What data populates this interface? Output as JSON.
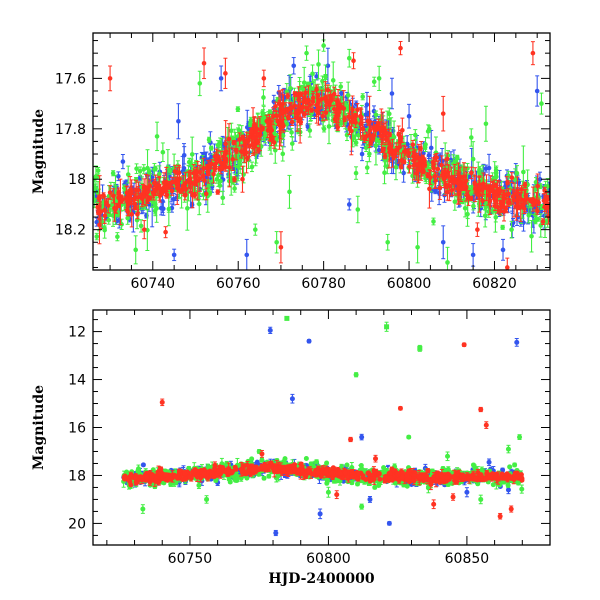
{
  "chart_data": [
    {
      "type": "scatter",
      "panel": "top",
      "ylabel": "Magnitude",
      "xlabel": "",
      "xlim": [
        60726,
        60833
      ],
      "ylim": [
        18.36,
        17.42
      ],
      "y_inverted": true,
      "xticks_labeled": [
        60740,
        60760,
        60780,
        60800,
        60820
      ],
      "yticks_labeled": [
        17.6,
        17.8,
        18,
        18.2
      ],
      "xtick_labels": [
        "60740",
        "60760",
        "60780",
        "60800",
        "60820"
      ],
      "ytick_labels": [
        "17.6",
        "17.8",
        "18",
        "18.2"
      ],
      "grid": false,
      "errorbars": true,
      "series": [
        {
          "color": "#3355ee",
          "trend": [
            [
              60726,
              18.13
            ],
            [
              60735,
              18.07
            ],
            [
              60745,
              18.02
            ],
            [
              60752,
              17.98
            ],
            [
              60758,
              17.91
            ],
            [
              60765,
              17.82
            ],
            [
              60772,
              17.73
            ],
            [
              60778,
              17.68
            ],
            [
              60784,
              17.72
            ],
            [
              60790,
              17.8
            ],
            [
              60798,
              17.89
            ],
            [
              60805,
              17.95
            ],
            [
              60812,
              18.02
            ],
            [
              60820,
              18.06
            ],
            [
              60826,
              18.08
            ],
            [
              60833,
              18.09
            ]
          ],
          "scatter_sd": 0.045,
          "outliers": [
            [
              60733,
              17.93
            ],
            [
              60746,
              17.77
            ],
            [
              60756,
              17.6
            ],
            [
              60773,
              17.55
            ],
            [
              60777,
              17.62
            ],
            [
              60781,
              17.55
            ],
            [
              60789,
              17.9
            ],
            [
              60796,
              17.66
            ],
            [
              60808,
              18.25
            ],
            [
              60815,
              18.3
            ],
            [
              60822,
              18.28
            ],
            [
              60830,
              17.65
            ],
            [
              60762,
              18.3
            ],
            [
              60786,
              18.1
            ],
            [
              60800,
              17.75
            ],
            [
              60745,
              18.3
            ]
          ]
        },
        {
          "color": "#44ee44",
          "trend": [
            [
              60726,
              18.13
            ],
            [
              60735,
              18.07
            ],
            [
              60745,
              18.02
            ],
            [
              60752,
              17.98
            ],
            [
              60758,
              17.91
            ],
            [
              60765,
              17.82
            ],
            [
              60772,
              17.73
            ],
            [
              60778,
              17.68
            ],
            [
              60784,
              17.72
            ],
            [
              60790,
              17.8
            ],
            [
              60798,
              17.89
            ],
            [
              60805,
              17.95
            ],
            [
              60812,
              18.02
            ],
            [
              60820,
              18.06
            ],
            [
              60826,
              18.08
            ],
            [
              60833,
              18.09
            ]
          ],
          "scatter_sd": 0.06,
          "outliers": [
            [
              60736,
              18.28
            ],
            [
              60741,
              17.83
            ],
            [
              60751,
              17.62
            ],
            [
              60758,
              17.9
            ],
            [
              60764,
              18.2
            ],
            [
              60769,
              18.25
            ],
            [
              60772,
              18.05
            ],
            [
              60776,
              17.5
            ],
            [
              60780,
              17.47
            ],
            [
              60786,
              17.52
            ],
            [
              60788,
              18.12
            ],
            [
              60795,
              18.25
            ],
            [
              60802,
              18.27
            ],
            [
              60809,
              18.33
            ],
            [
              60815,
              17.92
            ],
            [
              60818,
              17.78
            ],
            [
              60824,
              18.2
            ],
            [
              60831,
              17.7
            ],
            [
              60760,
              17.95
            ],
            [
              60793,
              17.6
            ]
          ]
        },
        {
          "color": "#ff3322",
          "trend": [
            [
              60726,
              18.13
            ],
            [
              60735,
              18.07
            ],
            [
              60745,
              18.02
            ],
            [
              60752,
              17.98
            ],
            [
              60758,
              17.91
            ],
            [
              60765,
              17.82
            ],
            [
              60772,
              17.73
            ],
            [
              60778,
              17.68
            ],
            [
              60784,
              17.72
            ],
            [
              60790,
              17.8
            ],
            [
              60798,
              17.89
            ],
            [
              60805,
              17.95
            ],
            [
              60812,
              18.02
            ],
            [
              60820,
              18.06
            ],
            [
              60826,
              18.08
            ],
            [
              60833,
              18.09
            ]
          ],
          "scatter_sd": 0.03,
          "outliers": [
            [
              60730,
              17.6
            ],
            [
              60743,
              18.21
            ],
            [
              60752,
              17.54
            ],
            [
              60757,
              17.58
            ],
            [
              60761,
              18.0
            ],
            [
              60770,
              18.27
            ],
            [
              60787,
              17.53
            ],
            [
              60798,
              17.48
            ],
            [
              60808,
              17.74
            ],
            [
              60816,
              18.2
            ],
            [
              60823,
              18.35
            ],
            [
              60829,
              17.5
            ],
            [
              60738,
              18.2
            ],
            [
              60766,
              17.6
            ]
          ]
        }
      ]
    },
    {
      "type": "scatter",
      "panel": "bottom",
      "ylabel": "Magnitude",
      "xlabel": "HJD-2400000",
      "xlim": [
        60715,
        60880
      ],
      "ylim": [
        20.9,
        11.1
      ],
      "y_inverted": true,
      "xticks_labeled": [
        60750,
        60800,
        60850
      ],
      "yticks_labeled": [
        12,
        14,
        16,
        18,
        20
      ],
      "xtick_labels": [
        "60750",
        "60800",
        "60850"
      ],
      "ytick_labels": [
        "12",
        "14",
        "16",
        "18",
        "20"
      ],
      "grid": false,
      "errorbars": true,
      "series": [
        {
          "color": "#3355ee",
          "trend": [
            [
              60726,
              18.13
            ],
            [
              60745,
              18.02
            ],
            [
              60765,
              17.82
            ],
            [
              60778,
              17.68
            ],
            [
              60790,
              17.8
            ],
            [
              60805,
              17.95
            ],
            [
              60820,
              18.06
            ],
            [
              60840,
              18.08
            ],
            [
              60860,
              18.07
            ],
            [
              60870,
              18.07
            ]
          ],
          "scatter_sd": 0.12,
          "outliers": [
            [
              60779,
              11.95
            ],
            [
              60793,
              12.4
            ],
            [
              60787,
              14.8
            ],
            [
              60812,
              16.4
            ],
            [
              60835,
              17.7
            ],
            [
              60850,
              18.7
            ],
            [
              60858,
              17.45
            ],
            [
              60868,
              12.45
            ],
            [
              60781,
              20.4
            ],
            [
              60797,
              19.6
            ],
            [
              60822,
              20.0
            ],
            [
              60815,
              19.0
            ],
            [
              60865,
              18.6
            ],
            [
              60760,
              18.3
            ]
          ]
        },
        {
          "color": "#44ee44",
          "trend": [
            [
              60726,
              18.13
            ],
            [
              60745,
              18.02
            ],
            [
              60765,
              17.82
            ],
            [
              60778,
              17.68
            ],
            [
              60790,
              17.8
            ],
            [
              60805,
              17.95
            ],
            [
              60820,
              18.06
            ],
            [
              60840,
              18.08
            ],
            [
              60860,
              18.07
            ],
            [
              60870,
              18.07
            ]
          ],
          "scatter_sd": 0.18,
          "outliers": [
            [
              60733,
              19.4
            ],
            [
              60785,
              11.45
            ],
            [
              60810,
              13.8
            ],
            [
              60821,
              11.8
            ],
            [
              60833,
              12.7
            ],
            [
              60829,
              16.4
            ],
            [
              60843,
              17.2
            ],
            [
              60865,
              16.9
            ],
            [
              60869,
              16.4
            ],
            [
              60812,
              19.3
            ],
            [
              60756,
              19.0
            ],
            [
              60775,
              17.0
            ],
            [
              60800,
              18.7
            ],
            [
              60855,
              19.0
            ]
          ]
        },
        {
          "color": "#ff3322",
          "trend": [
            [
              60726,
              18.13
            ],
            [
              60745,
              18.02
            ],
            [
              60765,
              17.82
            ],
            [
              60778,
              17.68
            ],
            [
              60790,
              17.8
            ],
            [
              60805,
              17.95
            ],
            [
              60820,
              18.06
            ],
            [
              60840,
              18.08
            ],
            [
              60860,
              18.07
            ],
            [
              60870,
              18.07
            ]
          ],
          "scatter_sd": 0.1,
          "outliers": [
            [
              60740,
              14.95
            ],
            [
              60808,
              16.5
            ],
            [
              60826,
              15.2
            ],
            [
              60849,
              12.55
            ],
            [
              60855,
              15.25
            ],
            [
              60857,
              15.9
            ],
            [
              60862,
              19.7
            ],
            [
              60776,
              17.1
            ],
            [
              60817,
              17.3
            ],
            [
              60838,
              19.2
            ],
            [
              60845,
              18.9
            ],
            [
              60866,
              19.4
            ],
            [
              60803,
              18.8
            ]
          ]
        }
      ]
    }
  ]
}
